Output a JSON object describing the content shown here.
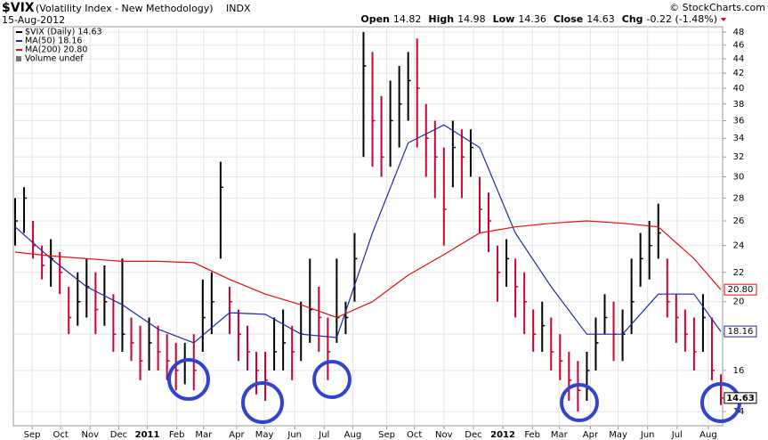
{
  "header": {
    "symbol": "$VIX",
    "name": "(Volatility Index - New Methodology)",
    "exchange": "INDX",
    "date": "15-Aug-2012",
    "copyright": "© StockCharts.com",
    "quote": [
      {
        "label": "Open",
        "value": "14.82"
      },
      {
        "label": "High",
        "value": "14.98"
      },
      {
        "label": "Low",
        "value": "14.36"
      },
      {
        "label": "Close",
        "value": "14.63"
      },
      {
        "label": "Chg",
        "value": "-0.22 (-1.48%)"
      }
    ]
  },
  "chart_data": {
    "type": "ohlc",
    "log_scale": true,
    "grid": true,
    "legend": "top-left",
    "volume_label": "Volume undef",
    "xlim": [
      0,
      79
    ],
    "xticks": [
      {
        "value": 1.9,
        "label": "Sep"
      },
      {
        "value": 5.1,
        "label": "Oct"
      },
      {
        "value": 8.4,
        "label": "Nov"
      },
      {
        "value": 11.6,
        "label": "Dec"
      },
      {
        "value": 14.8,
        "label": "2011"
      },
      {
        "value": 18.1,
        "label": "Feb"
      },
      {
        "value": 21.1,
        "label": "Mar"
      },
      {
        "value": 24.8,
        "label": "Apr"
      },
      {
        "value": 27.9,
        "label": "May"
      },
      {
        "value": 31.3,
        "label": "Jun"
      },
      {
        "value": 34.6,
        "label": "Jul"
      },
      {
        "value": 37.8,
        "label": "Aug"
      },
      {
        "value": 41.6,
        "label": "Sep"
      },
      {
        "value": 44.7,
        "label": "Oct"
      },
      {
        "value": 48.0,
        "label": "Nov"
      },
      {
        "value": 51.3,
        "label": "Dec"
      },
      {
        "value": 54.6,
        "label": "2012"
      },
      {
        "value": 57.9,
        "label": "Feb"
      },
      {
        "value": 60.9,
        "label": "Mar"
      },
      {
        "value": 64.4,
        "label": "Apr"
      },
      {
        "value": 67.5,
        "label": "May"
      },
      {
        "value": 70.8,
        "label": "Jun"
      },
      {
        "value": 74.1,
        "label": "Jul"
      },
      {
        "value": 77.6,
        "label": "Aug"
      }
    ],
    "ylim": [
      13.37,
      48.84
    ],
    "yticks": [
      14,
      16,
      18,
      20,
      22,
      24,
      26,
      28,
      30,
      32,
      34,
      36,
      38,
      40,
      42,
      44,
      46,
      48
    ],
    "series": [
      {
        "name": "$VIX (Daily) 14.63",
        "color": "#000000",
        "down_color": "#cc0033",
        "last_label": "14.63",
        "values": [
          26,
          28,
          24,
          22.5,
          23,
          22,
          19,
          20,
          21,
          19.5,
          20,
          18,
          18,
          17.5,
          16.5,
          17.5,
          17,
          16.5,
          16,
          16.5,
          16,
          19,
          20,
          29,
          20,
          18,
          17,
          16,
          15.5,
          17,
          17.5,
          17,
          18,
          19.5,
          19,
          17,
          19,
          19,
          23,
          43,
          36,
          32,
          36,
          38,
          41,
          40,
          34,
          32,
          27,
          33,
          32,
          33,
          27,
          26,
          22,
          23,
          21,
          20,
          18,
          18.5,
          17,
          16.5,
          15.5,
          15,
          16,
          17.5,
          19,
          18,
          18,
          20,
          23,
          24,
          25,
          20,
          19,
          18,
          17,
          19,
          16,
          14.63
        ],
        "high": [
          28,
          29,
          26,
          24,
          24.5,
          23.5,
          21,
          22,
          23,
          22,
          22.5,
          20.5,
          23,
          19,
          18.5,
          19,
          18.5,
          18,
          17.5,
          17.5,
          18,
          21.5,
          22,
          31.5,
          21,
          19.5,
          18.5,
          17,
          17,
          19,
          19.5,
          18.5,
          20,
          23,
          21,
          19,
          23,
          20,
          25,
          48,
          45,
          39,
          41,
          43,
          45,
          47,
          38,
          36,
          33,
          36,
          35,
          35,
          30,
          28.5,
          24,
          24.5,
          23,
          22,
          19.5,
          20,
          19,
          18,
          17,
          16.5,
          17,
          19,
          20.5,
          20,
          19.5,
          23,
          25,
          26,
          27.5,
          23,
          20.5,
          19.5,
          19,
          20.5,
          19,
          15.8
        ],
        "low": [
          24,
          25,
          23,
          21.5,
          21,
          20.5,
          18,
          18.5,
          19,
          18,
          18.5,
          17,
          17,
          16.5,
          15.5,
          16,
          16,
          15.5,
          15,
          15.3,
          15,
          17,
          18,
          23,
          18,
          16.5,
          16,
          14.8,
          14.5,
          16,
          16,
          15.5,
          16.5,
          17.5,
          17,
          15.5,
          17.5,
          18,
          20,
          32,
          31,
          30,
          31,
          33,
          36,
          33,
          30,
          28,
          24,
          29,
          28,
          30,
          25,
          23.5,
          20,
          21,
          19,
          18,
          17,
          17,
          16,
          15.5,
          14.5,
          14,
          14.5,
          16,
          18,
          16.5,
          16.5,
          18,
          21,
          21.5,
          23,
          19,
          17.5,
          17,
          16,
          17,
          15.5,
          14.3
        ]
      },
      {
        "name": "MA(50) 18.16",
        "color": "#1f2a9c",
        "last_label": "18.16",
        "x": [
          0,
          4,
          8,
          12,
          16,
          20,
          24,
          28,
          32,
          36,
          40,
          44,
          48,
          52,
          56,
          60,
          64,
          68,
          72,
          76,
          79
        ],
        "values": [
          25.5,
          23,
          21,
          19.8,
          18.3,
          17.5,
          19.3,
          19.2,
          18,
          17.8,
          25,
          33.5,
          35.5,
          33,
          25,
          21,
          18,
          18,
          20.5,
          20.5,
          18.16
        ]
      },
      {
        "name": "MA(200) 20.80",
        "color": "#dd1111",
        "last_label": "20.80",
        "x": [
          0,
          4,
          8,
          12,
          16,
          20,
          24,
          28,
          32,
          36,
          40,
          44,
          48,
          52,
          56,
          60,
          64,
          68,
          72,
          76,
          79
        ],
        "values": [
          23.5,
          23.2,
          23,
          22.8,
          22.8,
          22.7,
          21.5,
          20.5,
          19.8,
          19,
          20,
          21.8,
          23.3,
          25,
          25.5,
          25.8,
          26,
          25.8,
          25.5,
          23,
          20.8
        ]
      }
    ]
  }
}
